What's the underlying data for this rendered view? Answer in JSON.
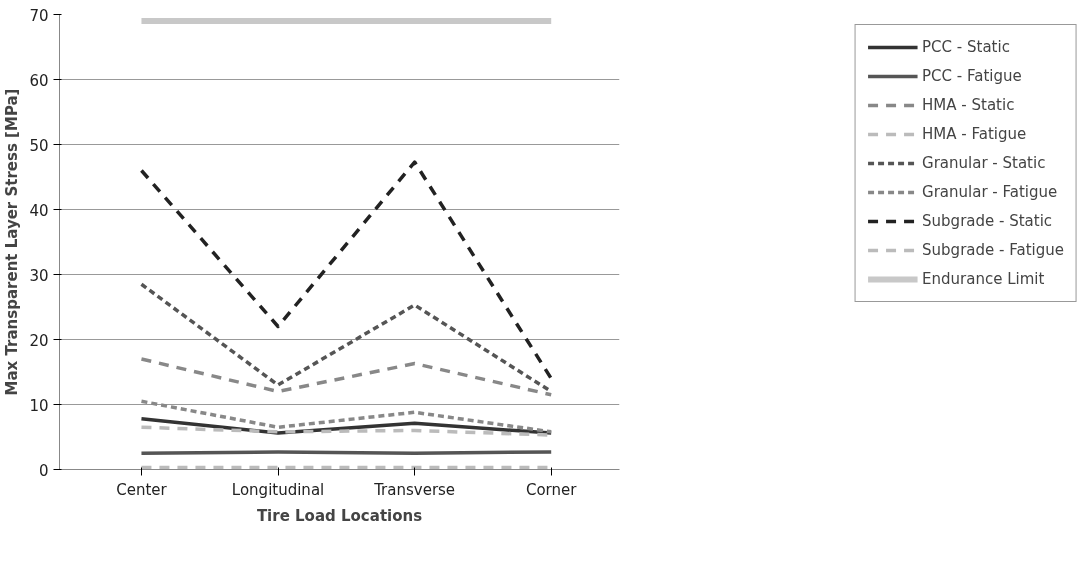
{
  "chart_data": {
    "type": "line",
    "xlabel": "Tire Load Locations",
    "ylabel": "Max Transparent Layer Stress [MPa]",
    "categories": [
      "Center",
      "Longitudinal",
      "Transverse",
      "Corner"
    ],
    "series": [
      {
        "name": "PCC - Static",
        "color": "#333333",
        "line_style": "solid",
        "values": [
          7.8,
          5.6,
          7.1,
          5.6
        ]
      },
      {
        "name": "PCC - Fatigue",
        "color": "#555555",
        "line_style": "solid",
        "values": [
          2.5,
          2.7,
          2.5,
          2.7
        ]
      },
      {
        "name": "HMA - Static",
        "color": "#888888",
        "line_style": "dashed",
        "values": [
          17,
          12,
          16.3,
          11.5
        ]
      },
      {
        "name": "HMA - Fatigue",
        "color": "#bbbbbb",
        "line_style": "dashed",
        "values": [
          6.5,
          5.8,
          6,
          5.3
        ]
      },
      {
        "name": "Granular - Static",
        "color": "#555555",
        "line_style": "dotted",
        "values": [
          28.5,
          13,
          25.3,
          12
        ]
      },
      {
        "name": "Granular - Fatigue",
        "color": "#888888",
        "line_style": "dotted",
        "values": [
          10.5,
          6.5,
          8.8,
          5.8
        ]
      },
      {
        "name": "Subgrade - Static",
        "color": "#222222",
        "line_style": "dashed",
        "values": [
          46,
          22,
          47.3,
          14
        ]
      },
      {
        "name": "Subgrade - Fatigue",
        "color": "#bbbbbb",
        "line_style": "dashed",
        "values": [
          0.3,
          0.3,
          0.3,
          0.3
        ]
      },
      {
        "name": "Endurance Limit",
        "color": "#c8c8c8",
        "line_style": "solid",
        "values": [
          69,
          69,
          69,
          69
        ]
      }
    ],
    "ylim": [
      0,
      70
    ],
    "yticks": [
      0,
      10,
      20,
      30,
      40,
      50,
      60,
      70
    ],
    "grid": "y",
    "legend": "right",
    "marker": "none"
  }
}
